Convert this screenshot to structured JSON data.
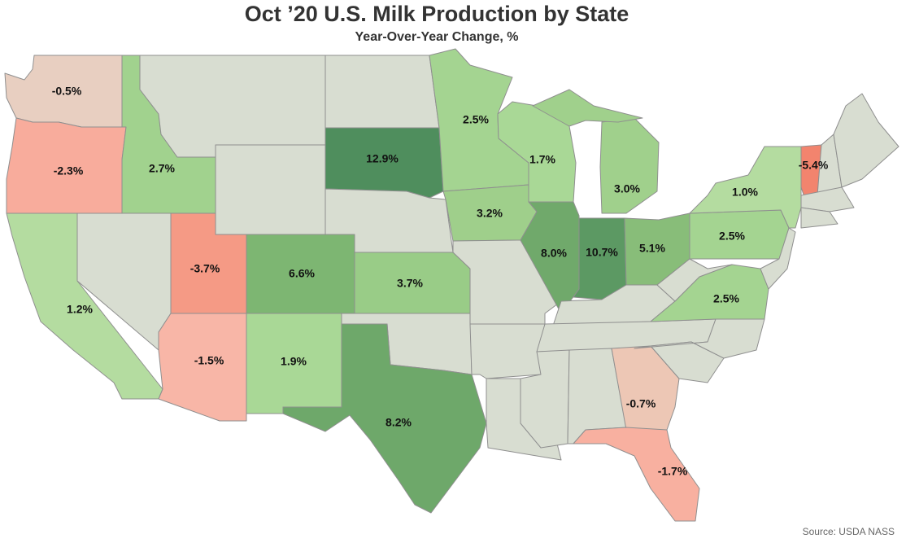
{
  "title": "Oct ’20 U.S. Milk Production by State",
  "subtitle": "Year-Over-Year Change, %",
  "source": "Source: USDA NASS",
  "colors": {
    "neutral": "#d8ddd1",
    "border": "#8f8f8f"
  },
  "chart_data": {
    "type": "choropleth",
    "title": "Oct ’20 U.S. Milk Production by State",
    "subtitle": "Year-Over-Year Change, %",
    "unit": "%",
    "states": [
      {
        "state": "WA",
        "value": -0.5,
        "label": "-0.5%",
        "color": "#e8cfc1"
      },
      {
        "state": "OR",
        "value": -2.3,
        "label": "-2.3%",
        "color": "#f8ac9c"
      },
      {
        "state": "CA",
        "value": 1.2,
        "label": "1.2%",
        "color": "#b4dca0"
      },
      {
        "state": "ID",
        "value": 2.7,
        "label": "2.7%",
        "color": "#a1d28e"
      },
      {
        "state": "UT",
        "value": -3.7,
        "label": "-3.7%",
        "color": "#f59a85"
      },
      {
        "state": "AZ",
        "value": -1.5,
        "label": "-1.5%",
        "color": "#f8b6a7"
      },
      {
        "state": "CO",
        "value": 6.6,
        "label": "6.6%",
        "color": "#7db672"
      },
      {
        "state": "NM",
        "value": 1.9,
        "label": "1.9%",
        "color": "#a9d896"
      },
      {
        "state": "SD",
        "value": 12.9,
        "label": "12.9%",
        "color": "#4f8e5d"
      },
      {
        "state": "KS",
        "value": 3.7,
        "label": "3.7%",
        "color": "#99cc87"
      },
      {
        "state": "TX",
        "value": 8.2,
        "label": "8.2%",
        "color": "#6ea86a"
      },
      {
        "state": "MN",
        "value": 2.5,
        "label": "2.5%",
        "color": "#a4d491"
      },
      {
        "state": "IA",
        "value": 3.2,
        "label": "3.2%",
        "color": "#9fcf8b"
      },
      {
        "state": "WI",
        "value": 1.7,
        "label": "1.7%",
        "color": "#a9d896"
      },
      {
        "state": "IL",
        "value": 8.0,
        "label": "8.0%",
        "color": "#70a96b"
      },
      {
        "state": "IN",
        "value": 10.7,
        "label": "10.7%",
        "color": "#5c9963"
      },
      {
        "state": "MI",
        "value": 3.0,
        "label": "3.0%",
        "color": "#a0d08c"
      },
      {
        "state": "OH",
        "value": 5.1,
        "label": "5.1%",
        "color": "#88bd79"
      },
      {
        "state": "PA",
        "value": 2.5,
        "label": "2.5%",
        "color": "#a4d491"
      },
      {
        "state": "NY",
        "value": 1.0,
        "label": "1.0%",
        "color": "#b4dca0"
      },
      {
        "state": "VT",
        "value": -5.4,
        "label": "-5.4%",
        "color": "#f2846e"
      },
      {
        "state": "VA",
        "value": 2.5,
        "label": "2.5%",
        "color": "#a4d491"
      },
      {
        "state": "GA",
        "value": -0.7,
        "label": "-0.7%",
        "color": "#edc7b5"
      },
      {
        "state": "FL",
        "value": -1.7,
        "label": "-1.7%",
        "color": "#f8b0a0"
      }
    ]
  }
}
